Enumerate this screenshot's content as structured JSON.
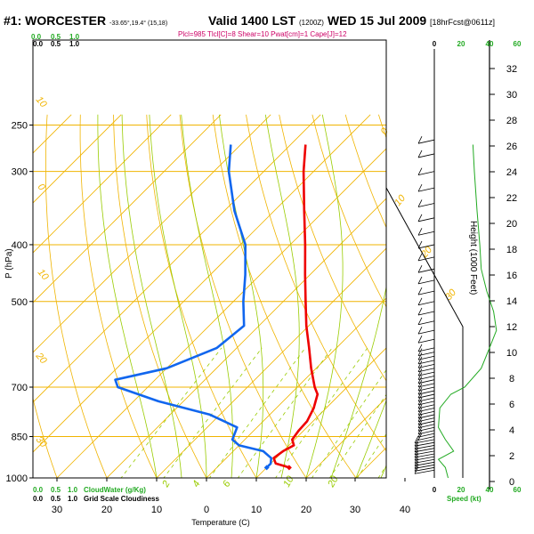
{
  "header": {
    "station": "#1: WORCESTER",
    "coords": "-33.65°,19.4° (15,18)",
    "valid": "Valid 1400 LST",
    "utc": "(1200Z)",
    "date": "WED 15 Jul 2009",
    "forecast": "[18hrFcst@0611z]",
    "params": "Plcl=985 Tlcl[C]=8 Shear=10 Pwat[cm]=1 Cape[J]=12"
  },
  "left_panel": {
    "top_scale": [
      "0.0",
      "0.5",
      "1.0"
    ],
    "top_scale_black": [
      "0.0",
      "0.5",
      "1.0"
    ],
    "bottom_scale": [
      "0.0",
      "0.5",
      "1.0"
    ],
    "bottom_scale_black": [
      "0.0",
      "0.5",
      "1.0"
    ],
    "cloud_water_label": "CloudWater (g/Kg)",
    "grid_cloudiness_label": "Grid Scale Cloudiness"
  },
  "wind_panel": {
    "top_ticks": [
      "0",
      "20",
      "40",
      "60"
    ],
    "bottom_ticks": [
      "0",
      "20",
      "40",
      "60"
    ],
    "speed_label": "Speed (kt)"
  },
  "colors": {
    "isobar": "#f0b400",
    "isotherm": "#f0b400",
    "dry_adiabat": "#f0b400",
    "moist_adiabat": "#99cc00",
    "mixing_ratio": "#99cc00",
    "temperature": "#ee0000",
    "dewpoint": "#1166ee",
    "green_label": "#22aa22",
    "height_curve": "#22aa22"
  },
  "chart_data": {
    "type": "line",
    "title": "#1: WORCESTER",
    "xlabel": "Temperature (C)",
    "ylabel": "P (hPa)",
    "y2label": "Height (1000 Feet)",
    "pressure_range": [
      1000,
      250
    ],
    "skew": "skew-T log-p",
    "x_ticks": [
      "30",
      "20",
      "10",
      "0",
      "10",
      "20",
      "30",
      "40"
    ],
    "y_ticks": [
      "250",
      "300",
      "400",
      "500",
      "700",
      "850",
      "1000"
    ],
    "height_ticks": [
      "0",
      "2",
      "4",
      "6",
      "8",
      "10",
      "12",
      "14",
      "16",
      "18",
      "20",
      "22",
      "24",
      "26",
      "28",
      "30",
      "32"
    ],
    "isotherm_labels": [
      "0",
      "10",
      "20",
      "30"
    ],
    "potential_temp_labels": [
      "10",
      "0",
      "10",
      "20",
      "30"
    ],
    "mixing_ratio_labels": [
      "2",
      "4",
      "6",
      "10",
      "20"
    ],
    "series": [
      {
        "name": "Temperature",
        "points": [
          {
            "p": 960,
            "t": 14.5
          },
          {
            "p": 945,
            "t": 11
          },
          {
            "p": 925,
            "t": 9.5
          },
          {
            "p": 900,
            "t": 10
          },
          {
            "p": 880,
            "t": 11
          },
          {
            "p": 860,
            "t": 9.5
          },
          {
            "p": 830,
            "t": 9
          },
          {
            "p": 800,
            "t": 8.8
          },
          {
            "p": 760,
            "t": 7.5
          },
          {
            "p": 720,
            "t": 5.5
          },
          {
            "p": 700,
            "t": 3.5
          },
          {
            "p": 650,
            "t": -1
          },
          {
            "p": 600,
            "t": -5.5
          },
          {
            "p": 550,
            "t": -10.5
          },
          {
            "p": 500,
            "t": -15.5
          },
          {
            "p": 450,
            "t": -21
          },
          {
            "p": 400,
            "t": -27
          },
          {
            "p": 350,
            "t": -34
          },
          {
            "p": 300,
            "t": -42
          },
          {
            "p": 270,
            "t": -47
          }
        ]
      },
      {
        "name": "Dewpoint",
        "points": [
          {
            "p": 960,
            "t": 10
          },
          {
            "p": 945,
            "t": 10
          },
          {
            "p": 925,
            "t": 9
          },
          {
            "p": 900,
            "t": 6
          },
          {
            "p": 880,
            "t": 0
          },
          {
            "p": 860,
            "t": -2.5
          },
          {
            "p": 820,
            "t": -4
          },
          {
            "p": 780,
            "t": -12
          },
          {
            "p": 740,
            "t": -25
          },
          {
            "p": 700,
            "t": -36
          },
          {
            "p": 680,
            "t": -38
          },
          {
            "p": 650,
            "t": -30
          },
          {
            "p": 600,
            "t": -24
          },
          {
            "p": 550,
            "t": -23
          },
          {
            "p": 500,
            "t": -28
          },
          {
            "p": 450,
            "t": -33
          },
          {
            "p": 400,
            "t": -39
          },
          {
            "p": 350,
            "t": -48
          },
          {
            "p": 300,
            "t": -57
          },
          {
            "p": 270,
            "t": -62
          }
        ]
      }
    ],
    "wind_barbs_pressure": [
      970,
      960,
      950,
      940,
      930,
      920,
      910,
      900,
      890,
      880,
      870,
      860,
      850,
      840,
      830,
      820,
      810,
      800,
      790,
      780,
      770,
      760,
      750,
      740,
      730,
      720,
      710,
      700,
      690,
      680,
      670,
      660,
      650,
      640,
      630,
      620,
      610,
      600,
      580,
      560,
      540,
      520,
      500,
      480,
      460,
      440,
      420,
      400,
      380,
      360,
      340,
      320,
      300,
      280,
      265
    ],
    "wind_speed_profile": [
      {
        "p": 1000,
        "s": 10
      },
      {
        "p": 960,
        "s": 8
      },
      {
        "p": 930,
        "s": 3
      },
      {
        "p": 900,
        "s": 14
      },
      {
        "p": 860,
        "s": 8
      },
      {
        "p": 820,
        "s": 3
      },
      {
        "p": 760,
        "s": 4
      },
      {
        "p": 720,
        "s": 12
      },
      {
        "p": 700,
        "s": 22
      },
      {
        "p": 650,
        "s": 34
      },
      {
        "p": 600,
        "s": 40
      },
      {
        "p": 560,
        "s": 45
      },
      {
        "p": 520,
        "s": 43
      },
      {
        "p": 480,
        "s": 38
      },
      {
        "p": 440,
        "s": 34
      },
      {
        "p": 400,
        "s": 33
      },
      {
        "p": 350,
        "s": 31
      },
      {
        "p": 300,
        "s": 29
      },
      {
        "p": 270,
        "s": 28
      }
    ]
  }
}
